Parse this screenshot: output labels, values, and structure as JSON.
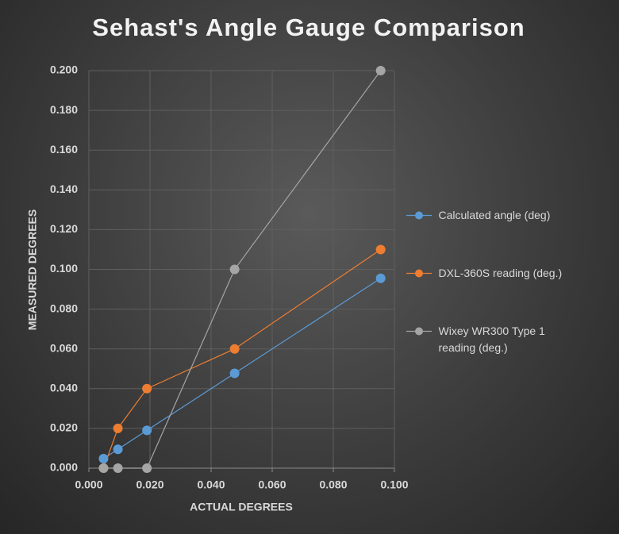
{
  "chart_data": {
    "type": "scatter-line",
    "title": "Sehast's Angle Gauge Comparison",
    "x_label": "ACTUAL DEGREES",
    "y_label": "MEASURED DEGREES",
    "x": [
      0.0048,
      0.0095,
      0.019,
      0.0477,
      0.0955
    ],
    "series": [
      {
        "name": "Calculated angle (deg)",
        "color": "#5b9bd5",
        "values": [
          0.0048,
          0.0095,
          0.019,
          0.0477,
          0.0955
        ]
      },
      {
        "name": "DXL-360S reading (deg.)",
        "color": "#ed7d31",
        "values": [
          0,
          0.02,
          0.04,
          0.06,
          0.11
        ]
      },
      {
        "name": "Wixey WR300 Type 1  reading (deg.)",
        "color": "#a5a5a5",
        "values": [
          0,
          0,
          0,
          0.1,
          0.2
        ]
      }
    ],
    "xlim": [
      0,
      0.1
    ],
    "ylim": [
      0,
      0.2
    ],
    "xticks": [
      {
        "value": 0,
        "label": "0.000"
      },
      {
        "value": 0.02,
        "label": "0.020"
      },
      {
        "value": 0.04,
        "label": "0.040"
      },
      {
        "value": 0.06,
        "label": "0.060"
      },
      {
        "value": 0.08,
        "label": "0.080"
      },
      {
        "value": 0.1,
        "label": "0.100"
      }
    ],
    "yticks": [
      {
        "value": 0,
        "label": "0.000"
      },
      {
        "value": 0.02,
        "label": "0.020"
      },
      {
        "value": 0.04,
        "label": "0.040"
      },
      {
        "value": 0.06,
        "label": "0.060"
      },
      {
        "value": 0.08,
        "label": "0.080"
      },
      {
        "value": 0.1,
        "label": "0.100"
      },
      {
        "value": 0.12,
        "label": "0.120"
      },
      {
        "value": 0.14,
        "label": "0.140"
      },
      {
        "value": 0.16,
        "label": "0.160"
      },
      {
        "value": 0.18,
        "label": "0.180"
      },
      {
        "value": 0.2,
        "label": "0.200"
      }
    ],
    "grid": true
  }
}
